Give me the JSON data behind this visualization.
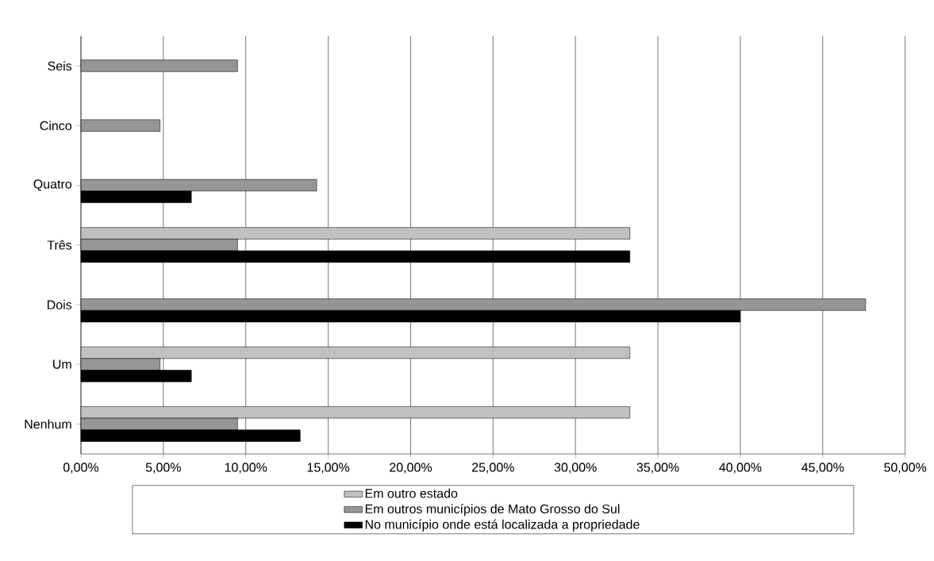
{
  "chart_data": {
    "type": "bar",
    "orientation": "horizontal",
    "categories": [
      "Seis",
      "Cinco",
      "Quatro",
      "Três",
      "Dois",
      "Um",
      "Nenhum"
    ],
    "series": [
      {
        "name": "Em outro estado",
        "color": "#c0c0c0",
        "values": [
          0,
          0,
          0,
          33.3,
          0,
          33.3,
          33.3
        ]
      },
      {
        "name": "Em outros municípios de Mato Grosso do Sul",
        "color": "#969696",
        "values": [
          9.5,
          4.8,
          14.3,
          9.5,
          47.6,
          4.8,
          9.5
        ]
      },
      {
        "name": "No município onde está localizada a propriedade",
        "color": "#000000",
        "values": [
          0,
          0,
          6.7,
          33.3,
          40.0,
          6.7,
          13.3
        ]
      }
    ],
    "xlim": [
      0,
      50
    ],
    "xticks": [
      {
        "value": 0,
        "label": "0,00%"
      },
      {
        "value": 5,
        "label": "5,00%"
      },
      {
        "value": 10,
        "label": "10,00%"
      },
      {
        "value": 15,
        "label": "15,00%"
      },
      {
        "value": 20,
        "label": "20,00%"
      },
      {
        "value": 25,
        "label": "25,00%"
      },
      {
        "value": 30,
        "label": "30,00%"
      },
      {
        "value": 35,
        "label": "35,00%"
      },
      {
        "value": 40,
        "label": "40,00%"
      },
      {
        "value": 45,
        "label": "45,00%"
      },
      {
        "value": 50,
        "label": "50,00%"
      }
    ],
    "grid": "x",
    "legend": "bottom"
  }
}
